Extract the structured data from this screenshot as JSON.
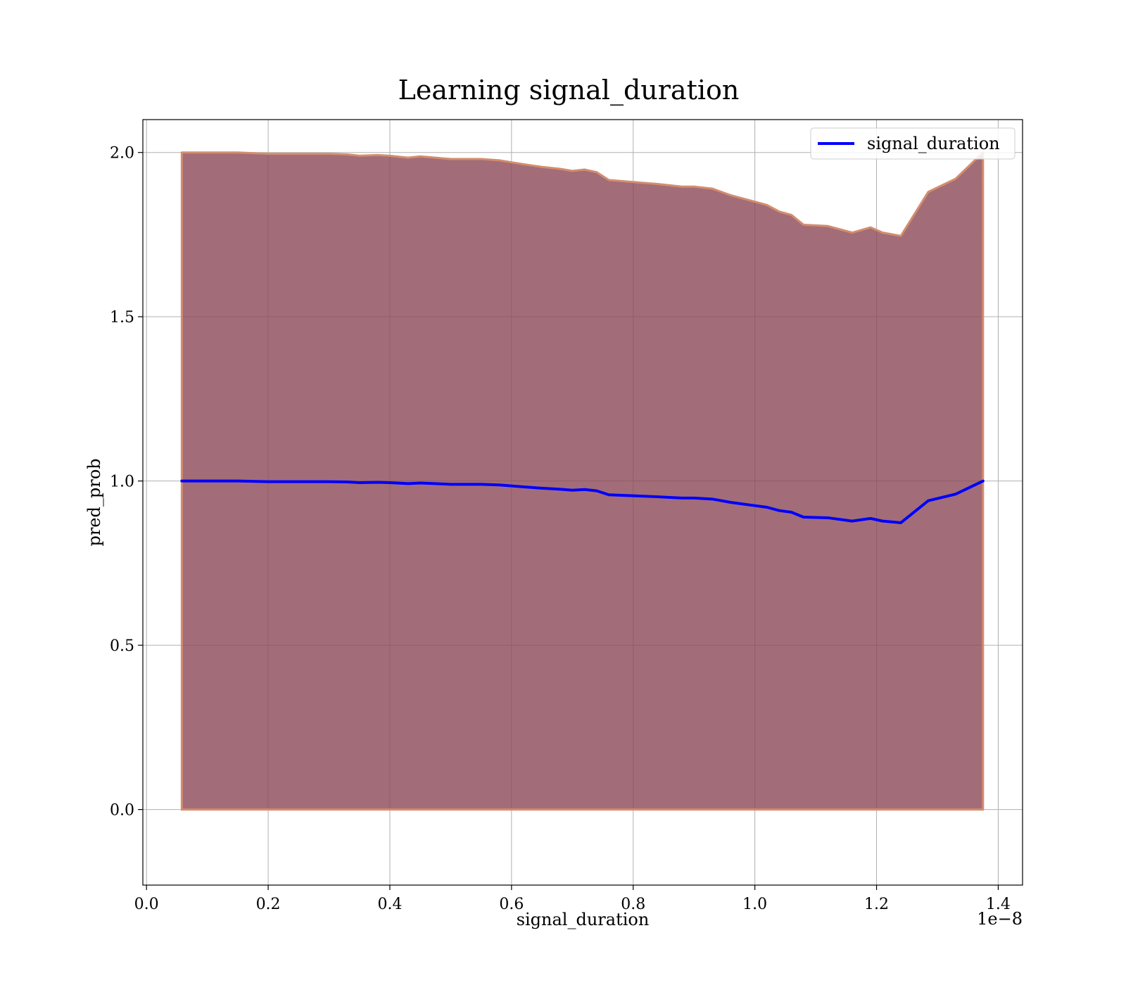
{
  "chart_data": {
    "type": "line",
    "title": "Learning signal_duration",
    "xlabel": "signal_duration",
    "ylabel": "pred_prob",
    "x_offset_label": "1e−8",
    "xlim": [
      -0.006,
      1.44
    ],
    "ylim": [
      -0.23,
      2.1
    ],
    "x_ticks": [
      0.0,
      0.2,
      0.4,
      0.6,
      0.8,
      1.0,
      1.2,
      1.4
    ],
    "x_tick_labels": [
      "0.0",
      "0.2",
      "0.4",
      "0.6",
      "0.8",
      "1.0",
      "1.2",
      "1.4"
    ],
    "y_ticks": [
      0.0,
      0.5,
      1.0,
      1.5,
      2.0
    ],
    "y_tick_labels": [
      "0.0",
      "0.5",
      "1.0",
      "1.5",
      "2.0"
    ],
    "grid": true,
    "legend_position": "top-right",
    "series": [
      {
        "name": "signal_duration",
        "color": "#0000ff",
        "x": [
          0.058,
          0.1,
          0.15,
          0.2,
          0.25,
          0.3,
          0.33,
          0.35,
          0.38,
          0.4,
          0.42,
          0.43,
          0.45,
          0.5,
          0.55,
          0.58,
          0.6,
          0.62,
          0.65,
          0.68,
          0.7,
          0.72,
          0.74,
          0.76,
          0.8,
          0.84,
          0.88,
          0.9,
          0.93,
          0.96,
          1.0,
          1.02,
          1.04,
          1.06,
          1.08,
          1.12,
          1.16,
          1.19,
          1.21,
          1.24,
          1.285,
          1.33,
          1.375
        ],
        "y": [
          1.0,
          1.0,
          1.0,
          0.998,
          0.998,
          0.998,
          0.997,
          0.995,
          0.996,
          0.995,
          0.993,
          0.992,
          0.994,
          0.99,
          0.99,
          0.988,
          0.985,
          0.982,
          0.978,
          0.975,
          0.972,
          0.974,
          0.97,
          0.958,
          0.955,
          0.952,
          0.948,
          0.948,
          0.945,
          0.935,
          0.925,
          0.92,
          0.91,
          0.905,
          0.89,
          0.888,
          0.878,
          0.886,
          0.878,
          0.873,
          0.94,
          0.96,
          1.0
        ]
      }
    ],
    "band": {
      "color": "#8b4856",
      "edge_color": "#d38d6e",
      "upper": [
        2.0,
        2.0,
        2.0,
        1.996,
        1.996,
        1.996,
        1.994,
        1.99,
        1.992,
        1.99,
        1.986,
        1.984,
        1.988,
        1.98,
        1.98,
        1.976,
        1.97,
        1.964,
        1.956,
        1.95,
        1.944,
        1.948,
        1.94,
        1.916,
        1.91,
        1.904,
        1.896,
        1.896,
        1.89,
        1.87,
        1.85,
        1.84,
        1.82,
        1.81,
        1.78,
        1.776,
        1.756,
        1.772,
        1.756,
        1.746,
        1.88,
        1.92,
        2.0
      ],
      "lower": [
        0.0,
        0.0,
        0.0,
        0.0,
        0.0,
        0.0,
        0.0,
        0.0,
        0.0,
        0.0,
        0.0,
        0.0,
        0.0,
        0.0,
        0.0,
        0.0,
        0.0,
        0.0,
        0.0,
        0.0,
        0.0,
        0.0,
        0.0,
        0.0,
        0.0,
        0.0,
        0.0,
        0.0,
        0.0,
        0.0,
        0.0,
        0.0,
        0.0,
        0.0,
        0.0,
        0.0,
        0.0,
        0.0,
        0.0,
        0.0,
        0.0,
        0.0,
        0.0
      ]
    }
  }
}
